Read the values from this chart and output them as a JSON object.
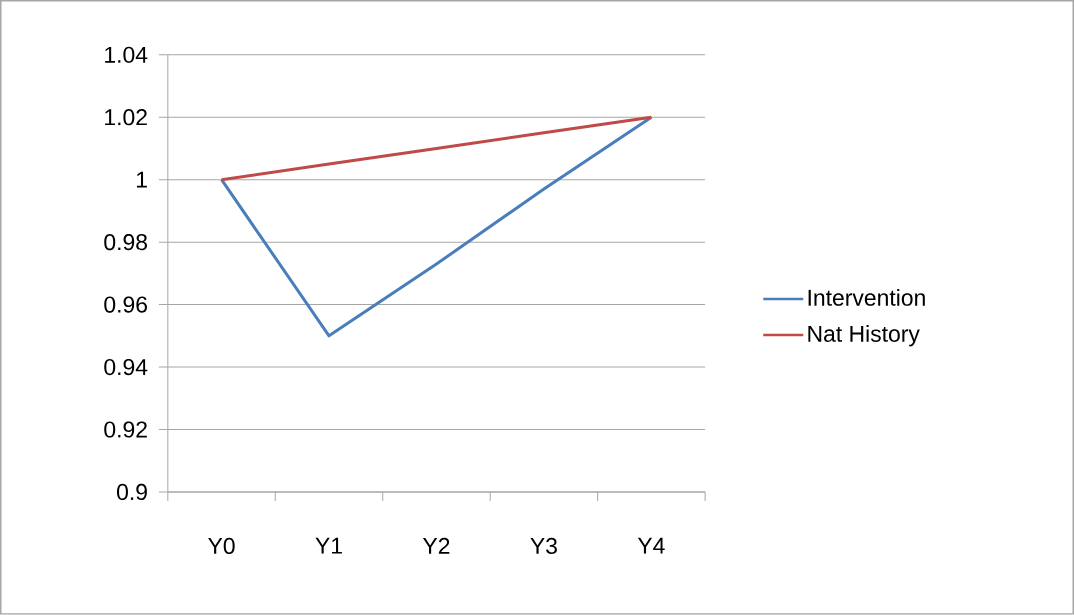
{
  "chart_data": {
    "type": "line",
    "categories": [
      "Y0",
      "Y1",
      "Y2",
      "Y3",
      "Y4"
    ],
    "series": [
      {
        "name": "Intervention",
        "color": "#4a7ebb",
        "values": [
          1,
          0.95,
          0.973,
          0.997,
          1.02
        ]
      },
      {
        "name": "Nat History",
        "color": "#be4b48",
        "values": [
          1,
          1.005,
          1.01,
          1.015,
          1.02
        ]
      }
    ],
    "ylim": [
      0.9,
      1.04
    ],
    "yticks": [
      0.9,
      0.92,
      0.94,
      0.96,
      0.98,
      1,
      1.02,
      1.04
    ],
    "grid": "y",
    "legend": "right",
    "line_style": "solid",
    "marker": "none"
  }
}
